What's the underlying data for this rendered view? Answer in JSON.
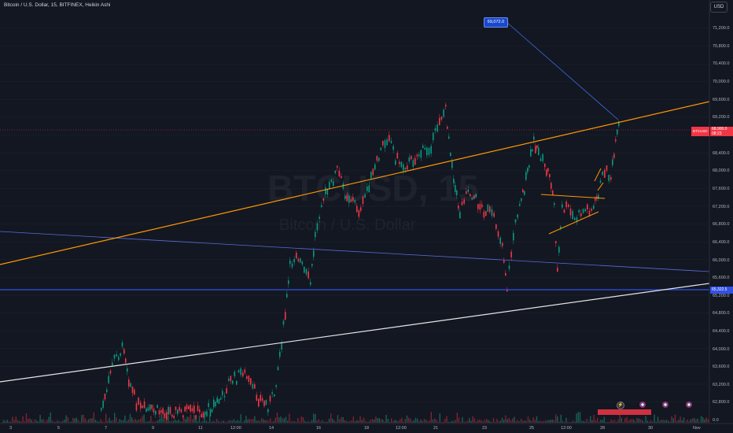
{
  "header": {
    "title": "Bitcoin / U.S. Dollar, 15, BITFINEX, Heikin Ashi",
    "currency_button": "USD"
  },
  "watermark": {
    "symbol": "BTCUSD, 15",
    "name": "Bitcoin / U.S. Dollar"
  },
  "price_axis": {
    "labels": [
      "71,200.0",
      "70,800.0",
      "70,400.0",
      "70,000.0",
      "69,600.0",
      "69,200.0",
      "68,400.0",
      "68,000.0",
      "67,600.0",
      "67,200.0",
      "66,800.0",
      "66,400.0",
      "66,000.0",
      "65,600.0",
      "65,200.0",
      "64,800.0",
      "64,400.0",
      "64,000.0",
      "63,600.0",
      "63,200.0",
      "62,800.0"
    ],
    "current_symbol_tag": "BTCUSD",
    "current_price": "68,900.0",
    "current_countdown": "08:23",
    "hline_price": "65,322.5",
    "zero_label": "0.0"
  },
  "time_axis": {
    "labels": [
      "3",
      "5",
      "7",
      "9",
      "11",
      "12:00",
      "14",
      "16",
      "18",
      "12:00",
      "21",
      "23",
      "25",
      "12:00",
      "28",
      "30",
      "Nov"
    ]
  },
  "annotations": {
    "callout_price": "69,072.0"
  },
  "colors": {
    "background": "#131722",
    "up": "#089981",
    "down": "#f23645",
    "orange_line": "#ff9800",
    "blue_line": "#5b6bd8",
    "white_line": "#e6e6e6",
    "callout": "#1848cc"
  },
  "icons": [
    "lightning-icon",
    "flag-us-icon",
    "flag-us-icon",
    "flag-us-icon",
    "flag-us-icon"
  ]
}
